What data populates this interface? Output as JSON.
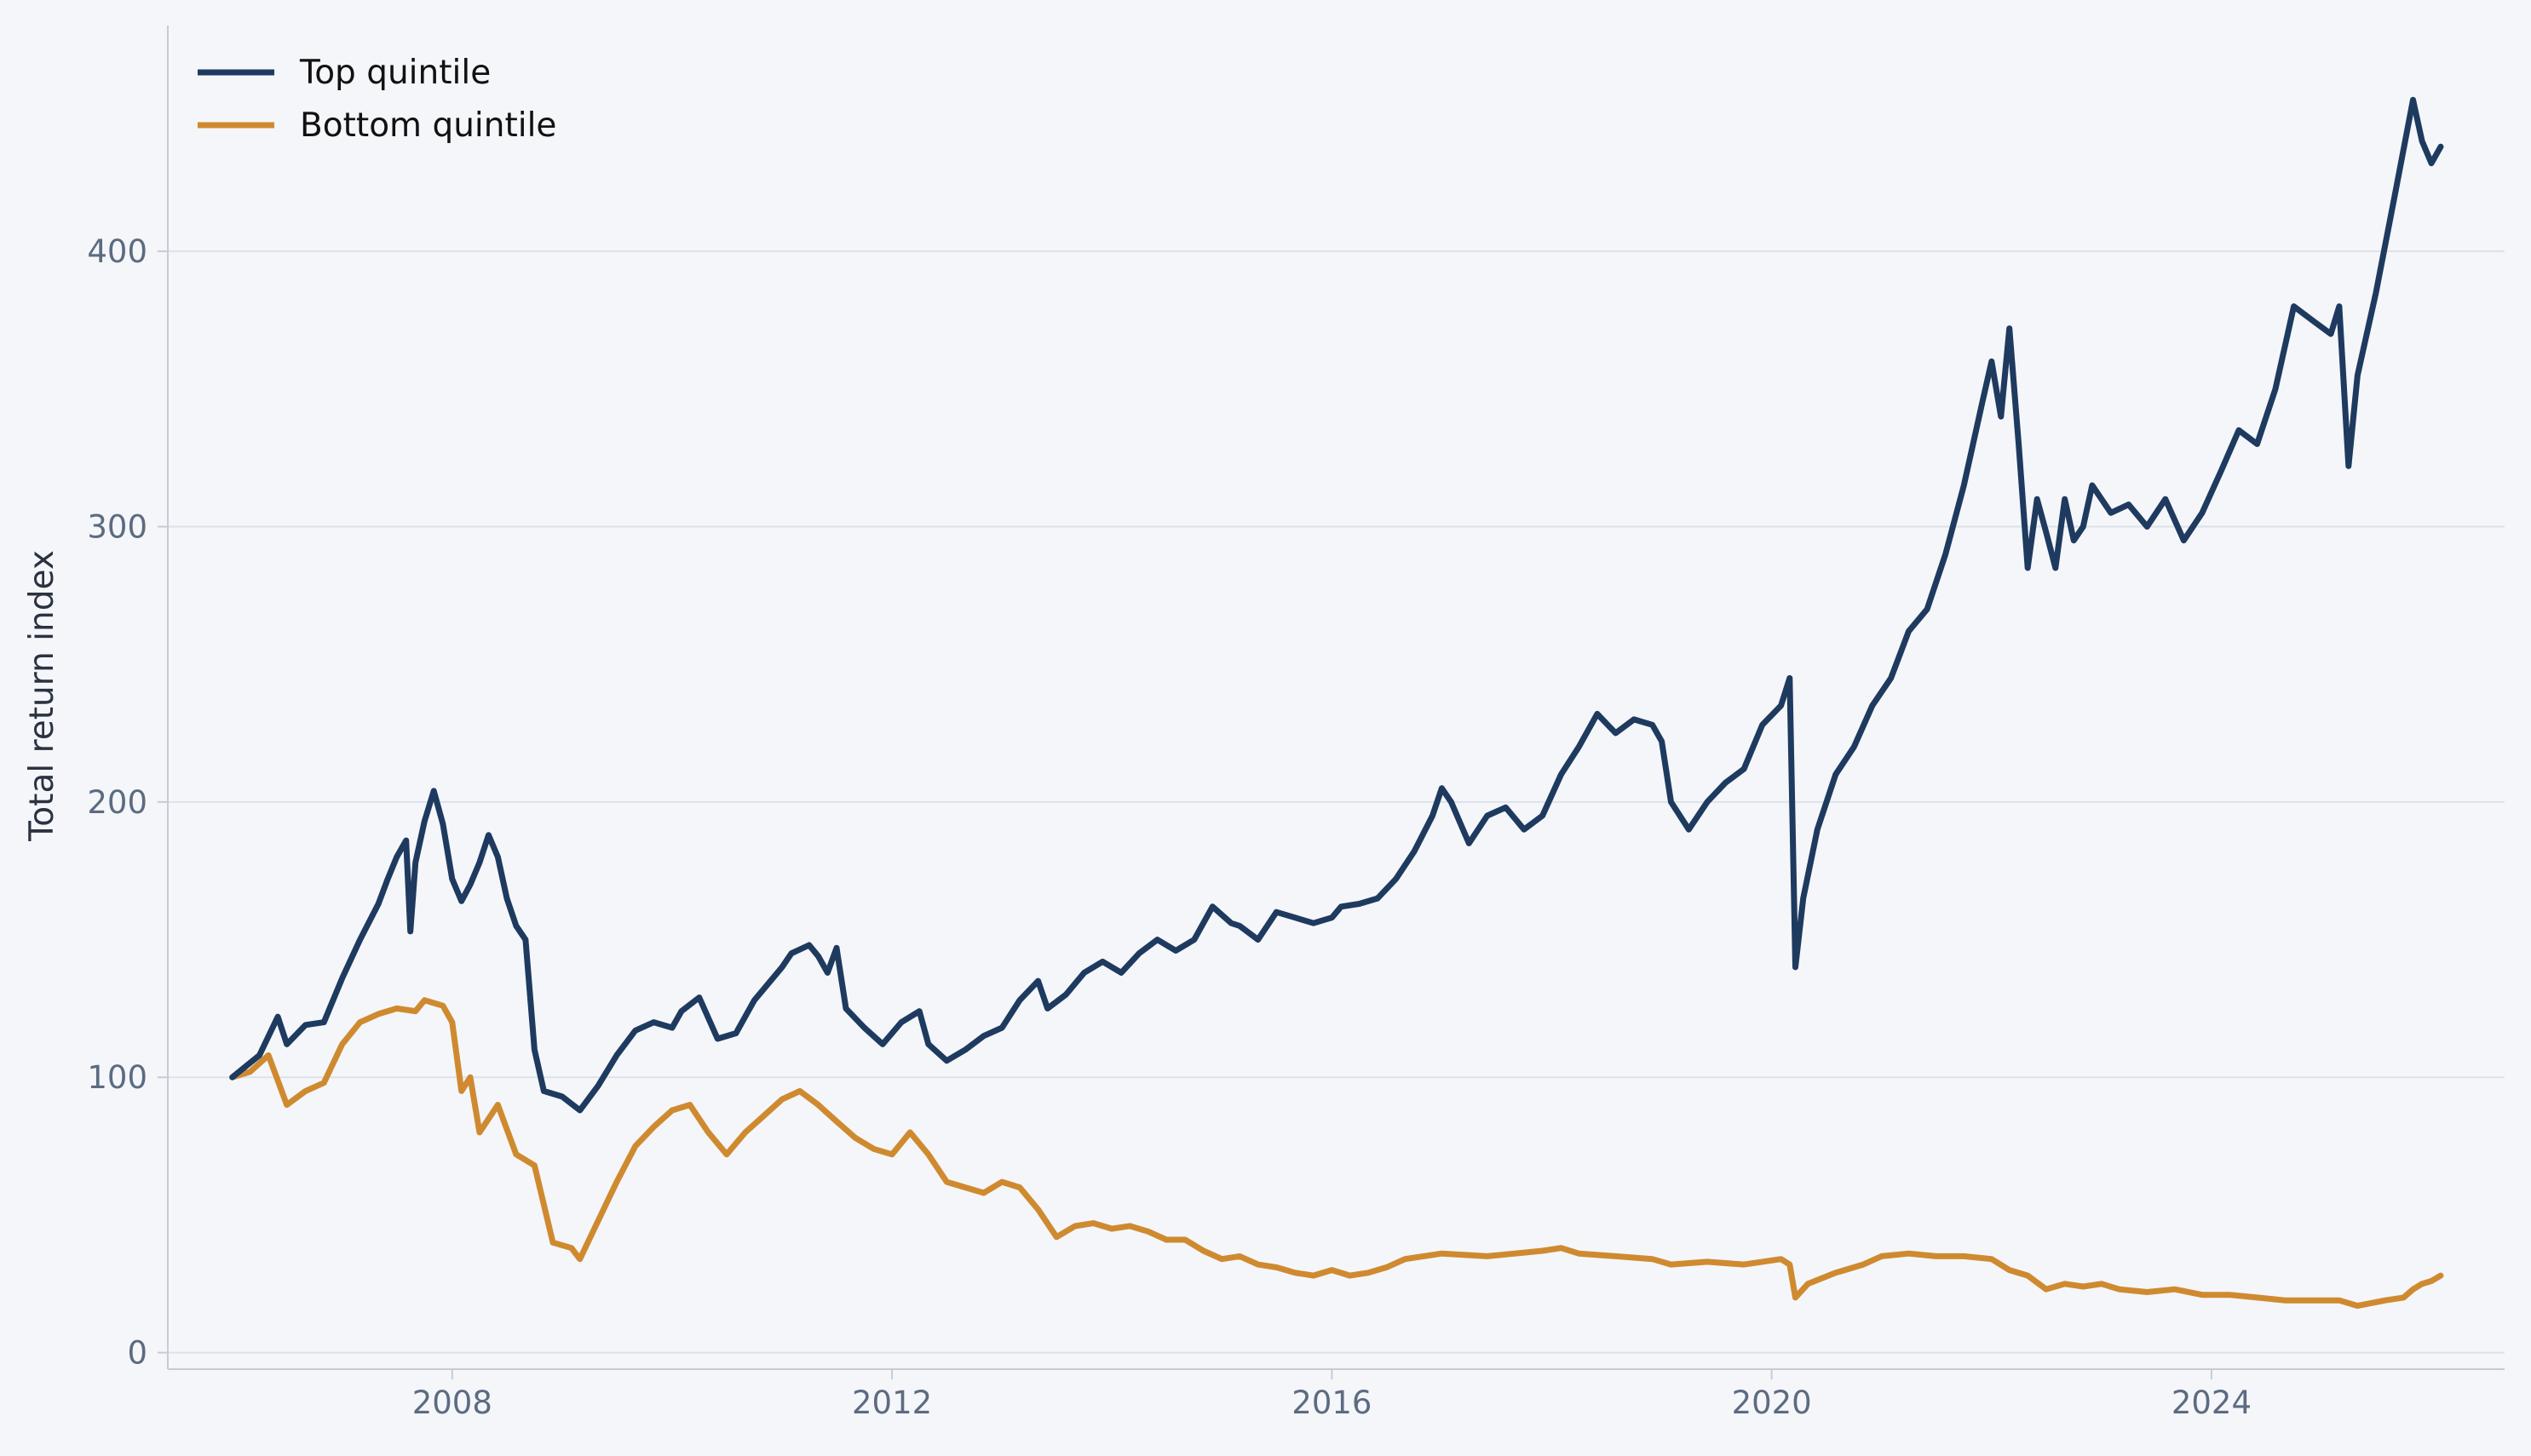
{
  "chart_data": {
    "type": "line",
    "title": "",
    "xlabel": "",
    "ylabel": "Total return index",
    "xlim": [
      "2005-06-01",
      "2026-09-01"
    ],
    "ylim": [
      -6,
      482
    ],
    "x_ticks": [
      "2008",
      "2012",
      "2016",
      "2020",
      "2024"
    ],
    "y_ticks": [
      0,
      100,
      200,
      300,
      400
    ],
    "grid": "horizontal",
    "legend": "top-left",
    "series": [
      {
        "name": "Top quintile",
        "color": "#1e3a5f",
        "points": [
          [
            "2006-01-01",
            100
          ],
          [
            "2006-04-01",
            108
          ],
          [
            "2006-06-01",
            122
          ],
          [
            "2006-07-01",
            112
          ],
          [
            "2006-09-01",
            119
          ],
          [
            "2006-11-01",
            120
          ],
          [
            "2007-01-01",
            136
          ],
          [
            "2007-03-01",
            150
          ],
          [
            "2007-05-01",
            163
          ],
          [
            "2007-06-01",
            172
          ],
          [
            "2007-07-01",
            180
          ],
          [
            "2007-08-01",
            186
          ],
          [
            "2007-08-15",
            153
          ],
          [
            "2007-09-01",
            178
          ],
          [
            "2007-10-01",
            193
          ],
          [
            "2007-11-01",
            204
          ],
          [
            "2007-12-01",
            192
          ],
          [
            "2008-01-01",
            172
          ],
          [
            "2008-02-01",
            164
          ],
          [
            "2008-03-01",
            170
          ],
          [
            "2008-04-01",
            178
          ],
          [
            "2008-05-01",
            188
          ],
          [
            "2008-06-01",
            180
          ],
          [
            "2008-07-01",
            165
          ],
          [
            "2008-08-01",
            155
          ],
          [
            "2008-09-01",
            150
          ],
          [
            "2008-10-01",
            110
          ],
          [
            "2008-11-01",
            95
          ],
          [
            "2009-01-01",
            93
          ],
          [
            "2009-03-01",
            88
          ],
          [
            "2009-05-01",
            97
          ],
          [
            "2009-07-01",
            108
          ],
          [
            "2009-09-01",
            117
          ],
          [
            "2009-11-01",
            120
          ],
          [
            "2010-01-01",
            118
          ],
          [
            "2010-02-01",
            124
          ],
          [
            "2010-04-01",
            129
          ],
          [
            "2010-06-01",
            114
          ],
          [
            "2010-08-01",
            116
          ],
          [
            "2010-10-01",
            128
          ],
          [
            "2011-01-01",
            140
          ],
          [
            "2011-02-01",
            145
          ],
          [
            "2011-04-01",
            148
          ],
          [
            "2011-05-01",
            144
          ],
          [
            "2011-06-01",
            138
          ],
          [
            "2011-07-01",
            147
          ],
          [
            "2011-08-01",
            125
          ],
          [
            "2011-10-01",
            118
          ],
          [
            "2011-12-01",
            112
          ],
          [
            "2012-02-01",
            120
          ],
          [
            "2012-04-01",
            124
          ],
          [
            "2012-05-01",
            112
          ],
          [
            "2012-07-01",
            106
          ],
          [
            "2012-09-01",
            110
          ],
          [
            "2012-11-01",
            115
          ],
          [
            "2013-01-01",
            118
          ],
          [
            "2013-03-01",
            128
          ],
          [
            "2013-05-01",
            135
          ],
          [
            "2013-06-01",
            125
          ],
          [
            "2013-08-01",
            130
          ],
          [
            "2013-10-01",
            138
          ],
          [
            "2013-12-01",
            142
          ],
          [
            "2014-02-01",
            138
          ],
          [
            "2014-04-01",
            145
          ],
          [
            "2014-06-01",
            150
          ],
          [
            "2014-08-01",
            146
          ],
          [
            "2014-10-01",
            150
          ],
          [
            "2014-12-01",
            162
          ],
          [
            "2015-02-01",
            156
          ],
          [
            "2015-03-01",
            155
          ],
          [
            "2015-05-01",
            150
          ],
          [
            "2015-07-01",
            160
          ],
          [
            "2015-09-01",
            158
          ],
          [
            "2015-11-01",
            156
          ],
          [
            "2016-01-01",
            158
          ],
          [
            "2016-02-01",
            162
          ],
          [
            "2016-04-01",
            163
          ],
          [
            "2016-06-01",
            165
          ],
          [
            "2016-08-01",
            172
          ],
          [
            "2016-10-01",
            182
          ],
          [
            "2016-12-01",
            195
          ],
          [
            "2017-01-01",
            205
          ],
          [
            "2017-02-01",
            200
          ],
          [
            "2017-04-01",
            185
          ],
          [
            "2017-06-01",
            195
          ],
          [
            "2017-08-01",
            198
          ],
          [
            "2017-10-01",
            190
          ],
          [
            "2017-12-01",
            195
          ],
          [
            "2018-02-01",
            210
          ],
          [
            "2018-04-01",
            220
          ],
          [
            "2018-06-01",
            232
          ],
          [
            "2018-08-01",
            225
          ],
          [
            "2018-10-01",
            230
          ],
          [
            "2018-12-01",
            228
          ],
          [
            "2019-01-01",
            222
          ],
          [
            "2019-02-01",
            200
          ],
          [
            "2019-04-01",
            190
          ],
          [
            "2019-06-01",
            200
          ],
          [
            "2019-08-01",
            207
          ],
          [
            "2019-10-01",
            212
          ],
          [
            "2019-12-01",
            228
          ],
          [
            "2020-02-01",
            235
          ],
          [
            "2020-03-01",
            245
          ],
          [
            "2020-03-20",
            140
          ],
          [
            "2020-04-15",
            165
          ],
          [
            "2020-06-01",
            190
          ],
          [
            "2020-08-01",
            210
          ],
          [
            "2020-10-01",
            220
          ],
          [
            "2020-12-01",
            235
          ],
          [
            "2021-02-01",
            245
          ],
          [
            "2021-04-01",
            262
          ],
          [
            "2021-06-01",
            270
          ],
          [
            "2021-08-01",
            290
          ],
          [
            "2021-10-01",
            315
          ],
          [
            "2021-12-01",
            345
          ],
          [
            "2022-01-01",
            360
          ],
          [
            "2022-02-01",
            340
          ],
          [
            "2022-03-01",
            372
          ],
          [
            "2022-04-01",
            330
          ],
          [
            "2022-05-01",
            285
          ],
          [
            "2022-06-01",
            310
          ],
          [
            "2022-07-01",
            298
          ],
          [
            "2022-08-01",
            285
          ],
          [
            "2022-09-01",
            310
          ],
          [
            "2022-10-01",
            295
          ],
          [
            "2022-11-01",
            300
          ],
          [
            "2022-12-01",
            315
          ],
          [
            "2023-02-01",
            305
          ],
          [
            "2023-04-01",
            308
          ],
          [
            "2023-06-01",
            300
          ],
          [
            "2023-08-01",
            310
          ],
          [
            "2023-10-01",
            295
          ],
          [
            "2023-12-01",
            305
          ],
          [
            "2024-02-01",
            320
          ],
          [
            "2024-04-01",
            335
          ],
          [
            "2024-06-01",
            330
          ],
          [
            "2024-08-01",
            350
          ],
          [
            "2024-10-01",
            380
          ],
          [
            "2024-12-01",
            375
          ],
          [
            "2025-02-01",
            370
          ],
          [
            "2025-03-01",
            380
          ],
          [
            "2025-04-01",
            322
          ],
          [
            "2025-05-01",
            355
          ],
          [
            "2025-07-01",
            385
          ],
          [
            "2025-09-01",
            420
          ],
          [
            "2025-11-01",
            455
          ],
          [
            "2025-12-01",
            440
          ],
          [
            "2026-01-01",
            432
          ],
          [
            "2026-02-01",
            438
          ]
        ]
      },
      {
        "name": "Bottom quintile",
        "color": "#cf8a30",
        "points": [
          [
            "2006-01-01",
            100
          ],
          [
            "2006-03-01",
            102
          ],
          [
            "2006-05-01",
            108
          ],
          [
            "2006-07-01",
            90
          ],
          [
            "2006-09-01",
            95
          ],
          [
            "2006-11-01",
            98
          ],
          [
            "2007-01-01",
            112
          ],
          [
            "2007-03-01",
            120
          ],
          [
            "2007-05-01",
            123
          ],
          [
            "2007-07-01",
            125
          ],
          [
            "2007-09-01",
            124
          ],
          [
            "2007-10-01",
            128
          ],
          [
            "2007-12-01",
            126
          ],
          [
            "2008-01-01",
            120
          ],
          [
            "2008-02-01",
            95
          ],
          [
            "2008-03-01",
            100
          ],
          [
            "2008-04-01",
            80
          ],
          [
            "2008-06-01",
            90
          ],
          [
            "2008-08-01",
            72
          ],
          [
            "2008-10-01",
            68
          ],
          [
            "2008-12-01",
            40
          ],
          [
            "2009-02-01",
            38
          ],
          [
            "2009-03-01",
            34
          ],
          [
            "2009-05-01",
            48
          ],
          [
            "2009-07-01",
            62
          ],
          [
            "2009-09-01",
            75
          ],
          [
            "2009-11-01",
            82
          ],
          [
            "2010-01-01",
            88
          ],
          [
            "2010-03-01",
            90
          ],
          [
            "2010-05-01",
            80
          ],
          [
            "2010-07-01",
            72
          ],
          [
            "2010-09-01",
            80
          ],
          [
            "2010-11-01",
            86
          ],
          [
            "2011-01-01",
            92
          ],
          [
            "2011-03-01",
            95
          ],
          [
            "2011-05-01",
            90
          ],
          [
            "2011-07-01",
            84
          ],
          [
            "2011-09-01",
            78
          ],
          [
            "2011-11-01",
            74
          ],
          [
            "2012-01-01",
            72
          ],
          [
            "2012-03-01",
            80
          ],
          [
            "2012-05-01",
            72
          ],
          [
            "2012-07-01",
            62
          ],
          [
            "2012-09-01",
            60
          ],
          [
            "2012-11-01",
            58
          ],
          [
            "2013-01-01",
            62
          ],
          [
            "2013-03-01",
            60
          ],
          [
            "2013-05-01",
            52
          ],
          [
            "2013-07-01",
            42
          ],
          [
            "2013-09-01",
            46
          ],
          [
            "2013-11-01",
            47
          ],
          [
            "2014-01-01",
            45
          ],
          [
            "2014-03-01",
            46
          ],
          [
            "2014-05-01",
            44
          ],
          [
            "2014-07-01",
            41
          ],
          [
            "2014-09-01",
            41
          ],
          [
            "2014-11-01",
            37
          ],
          [
            "2015-01-01",
            34
          ],
          [
            "2015-03-01",
            35
          ],
          [
            "2015-05-01",
            32
          ],
          [
            "2015-07-01",
            31
          ],
          [
            "2015-09-01",
            29
          ],
          [
            "2015-11-01",
            28
          ],
          [
            "2016-01-01",
            30
          ],
          [
            "2016-03-01",
            28
          ],
          [
            "2016-05-01",
            29
          ],
          [
            "2016-07-01",
            31
          ],
          [
            "2016-09-01",
            34
          ],
          [
            "2016-11-01",
            35
          ],
          [
            "2017-01-01",
            36
          ],
          [
            "2017-06-01",
            35
          ],
          [
            "2017-12-01",
            37
          ],
          [
            "2018-02-01",
            38
          ],
          [
            "2018-04-01",
            36
          ],
          [
            "2018-08-01",
            35
          ],
          [
            "2018-12-01",
            34
          ],
          [
            "2019-02-01",
            32
          ],
          [
            "2019-06-01",
            33
          ],
          [
            "2019-10-01",
            32
          ],
          [
            "2019-12-01",
            33
          ],
          [
            "2020-02-01",
            34
          ],
          [
            "2020-03-01",
            32
          ],
          [
            "2020-03-20",
            20
          ],
          [
            "2020-05-01",
            25
          ],
          [
            "2020-08-01",
            29
          ],
          [
            "2020-11-01",
            32
          ],
          [
            "2021-01-01",
            35
          ],
          [
            "2021-04-01",
            36
          ],
          [
            "2021-07-01",
            35
          ],
          [
            "2021-10-01",
            35
          ],
          [
            "2022-01-01",
            34
          ],
          [
            "2022-03-01",
            30
          ],
          [
            "2022-05-01",
            28
          ],
          [
            "2022-07-01",
            23
          ],
          [
            "2022-09-01",
            25
          ],
          [
            "2022-11-01",
            24
          ],
          [
            "2023-01-01",
            25
          ],
          [
            "2023-03-01",
            23
          ],
          [
            "2023-06-01",
            22
          ],
          [
            "2023-09-01",
            23
          ],
          [
            "2023-12-01",
            21
          ],
          [
            "2024-03-01",
            21
          ],
          [
            "2024-06-01",
            20
          ],
          [
            "2024-09-01",
            19
          ],
          [
            "2024-12-01",
            19
          ],
          [
            "2025-03-01",
            19
          ],
          [
            "2025-05-01",
            17
          ],
          [
            "2025-08-01",
            19
          ],
          [
            "2025-10-01",
            20
          ],
          [
            "2025-11-01",
            23
          ],
          [
            "2025-12-01",
            25
          ],
          [
            "2026-01-01",
            26
          ],
          [
            "2026-02-01",
            28
          ]
        ]
      }
    ]
  }
}
